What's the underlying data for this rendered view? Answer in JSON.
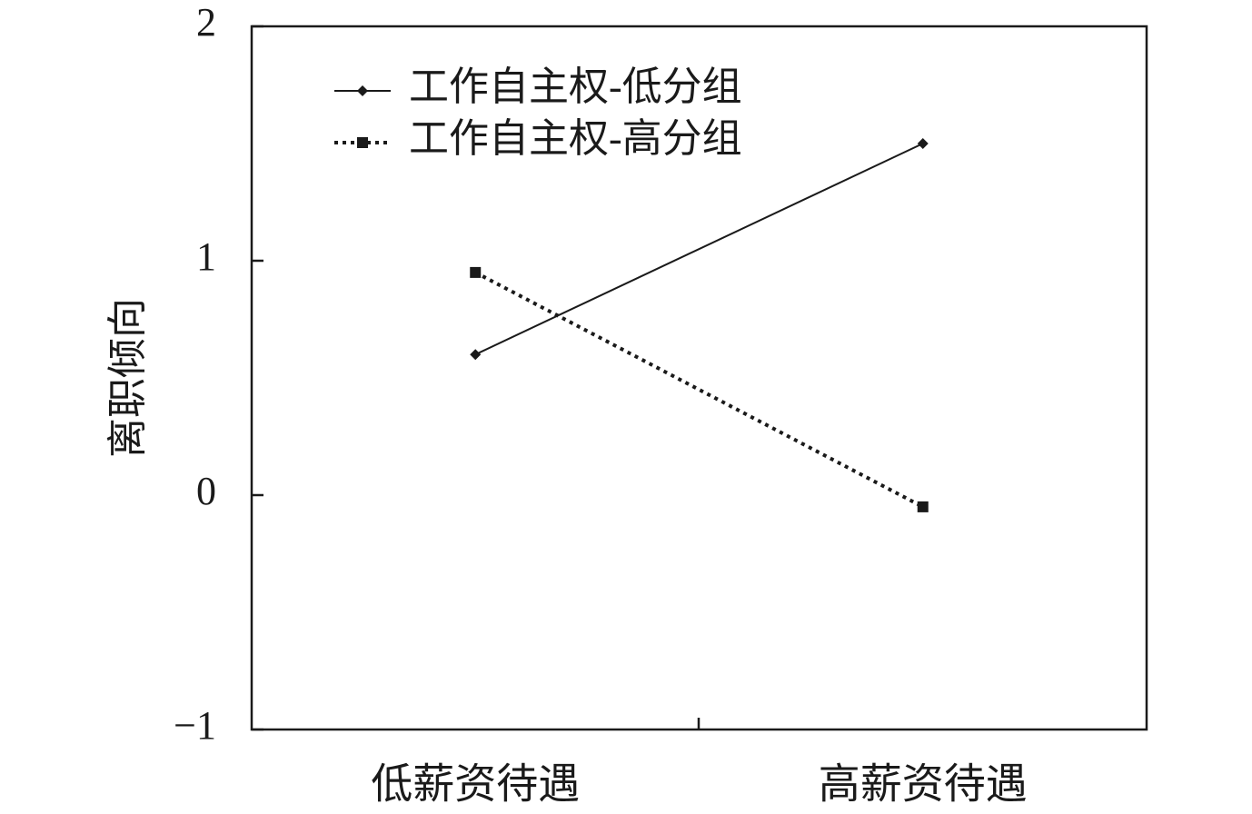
{
  "chart_data": {
    "type": "line",
    "y_label": "离职倾向",
    "categories": [
      "低薪资待遇",
      "高薪资待遇"
    ],
    "series": [
      {
        "name": "工作自主权-低分组",
        "color": "#1a1a1a",
        "line_style": "solid",
        "marker": "diamond",
        "values": [
          0.6,
          1.5
        ]
      },
      {
        "name": "工作自主权-高分组",
        "color": "#1a1a1a",
        "line_style": "dotted",
        "marker": "square",
        "values": [
          0.95,
          -0.05
        ]
      }
    ],
    "ylim": [
      -1,
      2
    ],
    "yticks": [
      {
        "value": -1,
        "label": "−1"
      },
      0,
      1,
      2
    ],
    "legend": "upper-left"
  }
}
